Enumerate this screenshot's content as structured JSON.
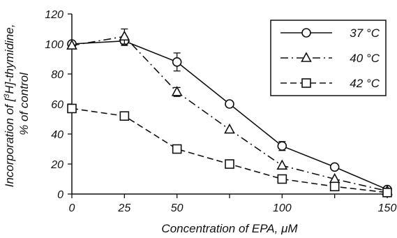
{
  "chart_data": {
    "type": "line",
    "x": [
      0,
      25,
      50,
      75,
      100,
      125,
      150
    ],
    "xlim": [
      0,
      150
    ],
    "ylim": [
      0,
      120
    ],
    "x_ticks": [
      0,
      25,
      50,
      100,
      150
    ],
    "y_ticks": [
      0,
      20,
      40,
      60,
      80,
      100,
      120
    ],
    "xlabel_main": "Concentration of EPA, ",
    "xlabel_unit": "μM",
    "ylabel_line1_pre": "Incorporation of [",
    "ylabel_line1_sup": "3",
    "ylabel_line1_post": "H]-thymidine,",
    "ylabel_line2": "% of control",
    "grid": false,
    "legend_position": "top-right",
    "series": [
      {
        "name": "37 °C",
        "marker": "circle",
        "dash": "solid",
        "values": [
          100,
          102,
          88,
          60,
          32,
          18,
          3
        ],
        "errors": [
          0,
          3,
          6,
          0,
          3,
          0,
          0
        ]
      },
      {
        "name": "40 °C",
        "marker": "triangle",
        "dash": "dashdot",
        "values": [
          99,
          105,
          68,
          43,
          19,
          10,
          2
        ],
        "errors": [
          0,
          5,
          3,
          0,
          0,
          0,
          0
        ]
      },
      {
        "name": "42 °C",
        "marker": "square",
        "dash": "dashed",
        "values": [
          57,
          52,
          30,
          20,
          10,
          5,
          1
        ],
        "errors": [
          0,
          0,
          0,
          0,
          0,
          0,
          0
        ]
      }
    ]
  }
}
